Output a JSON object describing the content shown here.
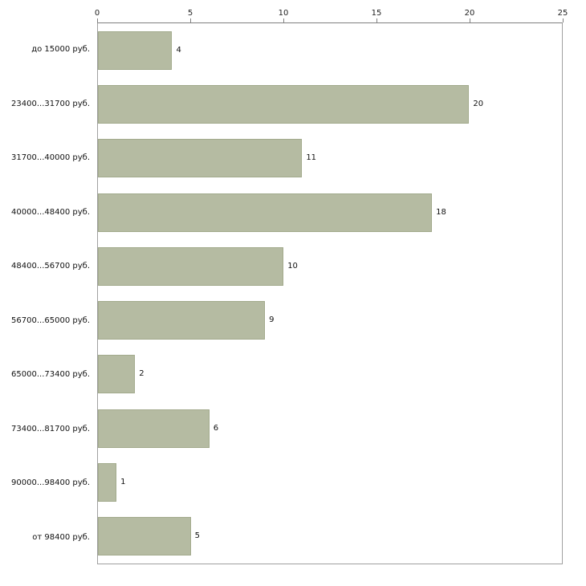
{
  "chart_data": {
    "type": "bar",
    "orientation": "horizontal",
    "title": "",
    "xlabel": "",
    "ylabel": "",
    "categories": [
      "до 15000 руб.",
      "23400...31700 руб.",
      "31700...40000 руб.",
      "40000...48400 руб.",
      "48400...56700 руб.",
      "56700...65000 руб.",
      "65000...73400 руб.",
      "73400...81700 руб.",
      "90000...98400 руб.",
      "от 98400 руб."
    ],
    "values": [
      4,
      20,
      11,
      18,
      10,
      9,
      2,
      6,
      1,
      5
    ],
    "xlim": [
      0,
      25
    ],
    "x_ticks": [
      0,
      5,
      10,
      15,
      20,
      25
    ],
    "x_axis_position": "top",
    "grid": false,
    "legend": false,
    "value_labels_shown": true,
    "colors": {
      "bar_fill": "#b5bba2",
      "bar_border": "#a2aa8c",
      "axis_line": "#808080",
      "text": "#111111",
      "background": "#ffffff"
    }
  }
}
